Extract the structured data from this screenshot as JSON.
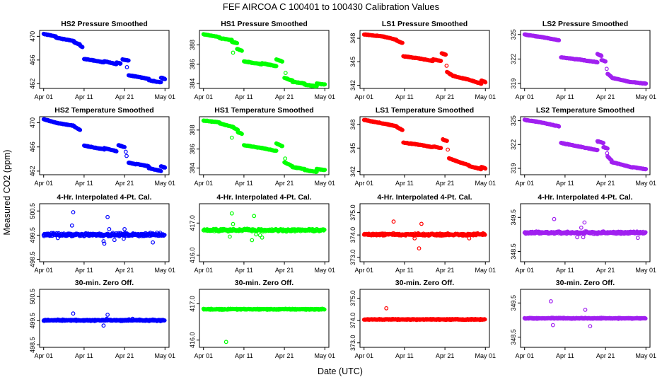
{
  "figure": {
    "title": "FEF   AIRCOA C   100401 to 100430   Calibration Values",
    "xlabel": "Date (UTC)",
    "ylabel": "Measured CO2 (ppm)"
  },
  "colors": {
    "HS2": "#0000ff",
    "HS1": "#00ff00",
    "LS1": "#ff0000",
    "LS2": "#a020f0"
  },
  "x_ticks": [
    "Apr 01",
    "Apr 11",
    "Apr 21",
    "May 01"
  ],
  "chart_data": [
    {
      "type": "scatter",
      "title": "HS2 Pressure Smoothed",
      "series": "HS2",
      "row": 0,
      "col": 0,
      "yticks": [
        "462",
        "466",
        "470"
      ],
      "ytick_values": [
        462,
        466,
        470
      ],
      "ylim": [
        461.2,
        471.0
      ],
      "x_unit": "days since Apr 01",
      "segments": [
        [
          0,
          3,
          470.4,
          470.0
        ],
        [
          3,
          7.5,
          469.8,
          469.2
        ],
        [
          7.5,
          9,
          469.0,
          468.6
        ],
        [
          9,
          9.6,
          468.4,
          468.2
        ],
        [
          10,
          15,
          466.2,
          465.6
        ],
        [
          15,
          18,
          465.8,
          465.3
        ],
        [
          18,
          19,
          465.6,
          465.4
        ],
        [
          19.5,
          21,
          466.1,
          465.9
        ],
        [
          21,
          23,
          463.4,
          463.2
        ],
        [
          23,
          26,
          463.2,
          462.8
        ],
        [
          26,
          29,
          462.6,
          462.2
        ],
        [
          29,
          30,
          463.0,
          462.8
        ]
      ],
      "outliers": [
        [
          20.6,
          464.8
        ]
      ]
    },
    {
      "type": "scatter",
      "title": "HS1 Pressure Smoothed",
      "series": "HS1",
      "row": 0,
      "col": 1,
      "yticks": [
        "384",
        "386",
        "388"
      ],
      "ytick_values": [
        384,
        386,
        388
      ],
      "ylim": [
        383.5,
        389.5
      ],
      "x_unit": "days since Apr 01",
      "segments": [
        [
          0,
          4,
          389.1,
          388.8
        ],
        [
          4,
          7,
          388.7,
          388.5
        ],
        [
          7,
          8.3,
          388.3,
          388.2
        ],
        [
          8.3,
          9.5,
          387.6,
          387.4
        ],
        [
          10,
          14.5,
          386.3,
          386.0
        ],
        [
          14.5,
          18,
          386.1,
          385.8
        ],
        [
          18,
          19.5,
          386.5,
          386.3
        ],
        [
          20,
          22,
          384.6,
          384.3
        ],
        [
          22,
          25,
          384.2,
          384.0
        ],
        [
          25,
          28,
          383.9,
          383.7
        ],
        [
          28,
          30,
          384.0,
          383.9
        ]
      ],
      "outliers": [
        [
          7.3,
          387.2
        ],
        [
          20.3,
          385.1
        ]
      ]
    },
    {
      "type": "scatter",
      "title": "LS1 Pressure Smoothed",
      "series": "LS1",
      "row": 0,
      "col": 2,
      "yticks": [
        "342",
        "345",
        "348"
      ],
      "ytick_values": [
        342,
        345,
        348
      ],
      "ylim": [
        341.6,
        349.0
      ],
      "x_unit": "days since Apr 01",
      "segments": [
        [
          0,
          5,
          348.5,
          348.2
        ],
        [
          5,
          8,
          348.2,
          347.8
        ],
        [
          8,
          9.5,
          347.7,
          347.4
        ],
        [
          9.7,
          14,
          345.7,
          345.4
        ],
        [
          14,
          17,
          345.4,
          345.1
        ],
        [
          17,
          19,
          345.3,
          345.1
        ],
        [
          19.2,
          20.2,
          346.1,
          345.9
        ],
        [
          20.5,
          22,
          343.7,
          343.2
        ],
        [
          22,
          26,
          343.2,
          342.7
        ],
        [
          26,
          29,
          342.7,
          342.2
        ],
        [
          29,
          30,
          342.6,
          342.4
        ]
      ],
      "outliers": [
        [
          20.4,
          344.5
        ]
      ]
    },
    {
      "type": "scatter",
      "title": "LS2 Pressure Smoothed",
      "series": "LS2",
      "row": 0,
      "col": 3,
      "yticks": [
        "319",
        "322",
        "325"
      ],
      "ytick_values": [
        319,
        322,
        325
      ],
      "ylim": [
        318.4,
        325.5
      ],
      "x_unit": "days since Apr 01",
      "segments": [
        [
          0,
          4,
          325.0,
          324.7
        ],
        [
          4,
          8.5,
          324.7,
          324.3
        ],
        [
          9,
          14,
          322.2,
          321.9
        ],
        [
          14,
          18,
          321.9,
          321.6
        ],
        [
          18,
          19,
          322.6,
          322.4
        ],
        [
          19,
          20,
          321.9,
          321.7
        ],
        [
          20.5,
          21.5,
          320.2,
          319.8
        ],
        [
          21.5,
          26,
          319.7,
          319.2
        ],
        [
          26,
          30,
          319.2,
          319.0
        ]
      ],
      "outliers": [
        [
          20.3,
          320.8
        ]
      ]
    },
    {
      "type": "scatter",
      "title": "HS2 Temperature Smoothed",
      "series": "HS2",
      "row": 1,
      "col": 0,
      "yticks": [
        "462",
        "466",
        "470"
      ],
      "ytick_values": [
        462,
        466,
        470
      ],
      "ylim": [
        461.4,
        471.0
      ],
      "x_unit": "days since Apr 01",
      "segments": [
        [
          0,
          3,
          470.6,
          470.0
        ],
        [
          3,
          7.5,
          470.0,
          469.5
        ],
        [
          7.5,
          9,
          469.4,
          468.8
        ],
        [
          10,
          15,
          466.2,
          465.6
        ],
        [
          15,
          18,
          465.8,
          465.3
        ],
        [
          18.5,
          20,
          466.3,
          466.0
        ],
        [
          21,
          23,
          463.4,
          463.1
        ],
        [
          23,
          26,
          463.2,
          462.8
        ],
        [
          26,
          29,
          462.5,
          462.0
        ],
        [
          29,
          30,
          462.8,
          462.6
        ]
      ],
      "outliers": [
        [
          20.3,
          465.2
        ],
        [
          20.5,
          464.5
        ]
      ]
    },
    {
      "type": "scatter",
      "title": "HS1 Temperature Smoothed",
      "series": "HS1",
      "row": 1,
      "col": 1,
      "yticks": [
        "384",
        "386",
        "388"
      ],
      "ytick_values": [
        384,
        386,
        388
      ],
      "ylim": [
        383.3,
        389.4
      ],
      "x_unit": "days since Apr 01",
      "segments": [
        [
          0,
          4,
          389.0,
          388.8
        ],
        [
          4,
          7.5,
          388.7,
          388.3
        ],
        [
          7.5,
          8.5,
          388.2,
          388.0
        ],
        [
          8.5,
          9.5,
          387.8,
          387.6
        ],
        [
          10,
          14.5,
          386.4,
          386.1
        ],
        [
          14.5,
          18,
          386.1,
          385.8
        ],
        [
          18,
          19.5,
          386.6,
          386.3
        ],
        [
          20,
          22,
          384.6,
          384.2
        ],
        [
          22,
          25,
          384.1,
          383.9
        ],
        [
          25,
          28,
          383.8,
          383.6
        ],
        [
          28,
          30,
          383.9,
          383.8
        ]
      ],
      "outliers": [
        [
          7.0,
          387.2
        ],
        [
          20.2,
          385.0
        ]
      ]
    },
    {
      "type": "scatter",
      "title": "LS1 Temperature Smoothed",
      "series": "LS1",
      "row": 1,
      "col": 2,
      "yticks": [
        "342",
        "345",
        "348"
      ],
      "ytick_values": [
        342,
        345,
        348
      ],
      "ylim": [
        341.6,
        349.0
      ],
      "x_unit": "days since Apr 01",
      "segments": [
        [
          0,
          4,
          348.6,
          348.2
        ],
        [
          4,
          8,
          348.2,
          347.8
        ],
        [
          8,
          9.5,
          347.7,
          347.3
        ],
        [
          9.7,
          14,
          345.7,
          345.4
        ],
        [
          14,
          17,
          345.4,
          345.1
        ],
        [
          17,
          19,
          345.2,
          345.0
        ],
        [
          19.5,
          20.5,
          346.1,
          345.9
        ],
        [
          21,
          23,
          343.7,
          343.3
        ],
        [
          23,
          26,
          343.3,
          342.8
        ],
        [
          26,
          29,
          342.7,
          342.3
        ],
        [
          29,
          30,
          342.6,
          342.4
        ]
      ],
      "outliers": [
        [
          20.7,
          344.8
        ]
      ]
    },
    {
      "type": "scatter",
      "title": "LS2 Temperature Smoothed",
      "series": "LS2",
      "row": 1,
      "col": 3,
      "yticks": [
        "319",
        "322",
        "325"
      ],
      "ytick_values": [
        319,
        322,
        325
      ],
      "ylim": [
        318.2,
        325.5
      ],
      "x_unit": "days since Apr 01",
      "segments": [
        [
          0,
          4,
          325.1,
          324.8
        ],
        [
          4,
          8.5,
          324.8,
          324.3
        ],
        [
          9,
          14,
          322.2,
          321.7
        ],
        [
          14,
          18,
          321.7,
          321.3
        ],
        [
          18,
          19.5,
          322.4,
          322.2
        ],
        [
          19.5,
          20.5,
          321.7,
          321.5
        ],
        [
          20.5,
          21.5,
          320.5,
          320.0
        ],
        [
          21.5,
          26,
          319.8,
          319.2
        ],
        [
          26,
          30,
          319.2,
          318.9
        ]
      ],
      "outliers": [
        [
          20.4,
          320.9
        ]
      ]
    },
    {
      "type": "scatter",
      "title": "4-Hr. Interpolated 4-Pt. Cal.",
      "series": "HS2",
      "row": 2,
      "col": 0,
      "yticks": [
        "498.5",
        "499.5",
        "500.5"
      ],
      "ytick_values": [
        498.5,
        499.5,
        500.5
      ],
      "ylim": [
        498.4,
        500.8
      ],
      "x_unit": "days since Apr 01",
      "band": {
        "center": 499.52,
        "spread": 0.09
      },
      "outliers": [
        [
          7.3,
          500.45
        ],
        [
          7.0,
          499.9
        ],
        [
          3.5,
          499.38
        ],
        [
          15.8,
          500.25
        ],
        [
          16.2,
          499.75
        ],
        [
          15.0,
          499.15
        ],
        [
          14.8,
          499.25
        ],
        [
          19.8,
          499.35
        ],
        [
          20.0,
          499.75
        ],
        [
          17.5,
          499.3
        ],
        [
          27.0,
          499.2
        ],
        [
          28.0,
          499.6
        ]
      ]
    },
    {
      "type": "scatter",
      "title": "4-Hr. Interpolated 4-Pt. Cal.",
      "series": "HS1",
      "row": 2,
      "col": 1,
      "yticks": [
        "416.0",
        "417.0"
      ],
      "ytick_values": [
        416.0,
        417.0
      ],
      "ylim": [
        415.8,
        417.6
      ],
      "x_unit": "days since Apr 01",
      "band": {
        "center": 416.78,
        "spread": 0.05
      },
      "outliers": [
        [
          7.0,
          417.3
        ],
        [
          7.3,
          416.97
        ],
        [
          6.5,
          416.58
        ],
        [
          12.0,
          416.47
        ],
        [
          12.5,
          417.22
        ],
        [
          13.0,
          416.65
        ],
        [
          14.0,
          416.62
        ],
        [
          14.5,
          416.55
        ]
      ]
    },
    {
      "type": "scatter",
      "title": "4-Hr. Interpolated 4-Pt. Cal.",
      "series": "LS1",
      "row": 2,
      "col": 2,
      "yticks": [
        "373.0",
        "374.0",
        "375.0"
      ],
      "ytick_values": [
        373.0,
        374.0,
        375.0
      ],
      "ylim": [
        372.8,
        375.4
      ],
      "x_unit": "days since Apr 01",
      "band": {
        "center": 374.02,
        "spread": 0.07
      },
      "outliers": [
        [
          7.3,
          374.6
        ],
        [
          14.2,
          374.5
        ],
        [
          13.6,
          373.4
        ],
        [
          12.5,
          373.85
        ],
        [
          26.0,
          373.85
        ]
      ]
    },
    {
      "type": "scatter",
      "title": "4-Hr. Interpolated 4-Pt. Cal.",
      "series": "LS2",
      "row": 2,
      "col": 3,
      "yticks": [
        "348.5",
        "349.5"
      ],
      "ytick_values": [
        348.5,
        349.5
      ],
      "ylim": [
        348.2,
        349.9
      ],
      "x_unit": "days since Apr 01",
      "band": {
        "center": 349.05,
        "spread": 0.05
      },
      "outliers": [
        [
          7.3,
          349.45
        ],
        [
          14.8,
          349.35
        ],
        [
          14.0,
          349.2
        ],
        [
          13.0,
          348.92
        ],
        [
          14.5,
          348.92
        ],
        [
          28.0,
          348.9
        ]
      ]
    },
    {
      "type": "scatter",
      "title": "30-min. Zero Off.",
      "series": "HS2",
      "row": 3,
      "col": 0,
      "yticks": [
        "498.5",
        "499.5",
        "500.5"
      ],
      "ytick_values": [
        498.5,
        499.5,
        500.5
      ],
      "ylim": [
        498.4,
        500.8
      ],
      "x_unit": "days since Apr 01",
      "band": {
        "center": 499.52,
        "spread": 0.04
      },
      "outliers": [
        [
          7.3,
          499.8
        ],
        [
          15.8,
          499.75
        ],
        [
          14.8,
          499.3
        ],
        [
          15.6,
          499.58
        ],
        [
          22.0,
          499.58
        ]
      ]
    },
    {
      "type": "scatter",
      "title": "30-min. Zero Off.",
      "series": "HS1",
      "row": 3,
      "col": 1,
      "yticks": [
        "416.0",
        "417.0"
      ],
      "ytick_values": [
        416.0,
        417.0
      ],
      "ylim": [
        415.8,
        417.4
      ],
      "x_unit": "days since Apr 01",
      "band": {
        "center": 416.85,
        "spread": 0.02
      },
      "outliers": [
        [
          5.6,
          415.95
        ]
      ]
    },
    {
      "type": "scatter",
      "title": "30-min. Zero Off.",
      "series": "LS1",
      "row": 3,
      "col": 2,
      "yticks": [
        "373.0",
        "374.0",
        "375.0"
      ],
      "ytick_values": [
        373.0,
        374.0,
        375.0
      ],
      "ylim": [
        372.8,
        375.4
      ],
      "x_unit": "days since Apr 01",
      "band": {
        "center": 374.05,
        "spread": 0.03
      },
      "outliers": [
        [
          5.5,
          374.55
        ]
      ]
    },
    {
      "type": "scatter",
      "title": "30-min. Zero Off.",
      "series": "LS2",
      "row": 3,
      "col": 3,
      "yticks": [
        "348.5",
        "349.5"
      ],
      "ytick_values": [
        348.5,
        349.5
      ],
      "ylim": [
        348.2,
        349.9
      ],
      "x_unit": "days since Apr 01",
      "band": {
        "center": 349.05,
        "spread": 0.02
      },
      "outliers": [
        [
          6.5,
          349.55
        ],
        [
          7.0,
          348.85
        ],
        [
          15.0,
          349.3
        ],
        [
          16.2,
          348.82
        ]
      ]
    }
  ]
}
